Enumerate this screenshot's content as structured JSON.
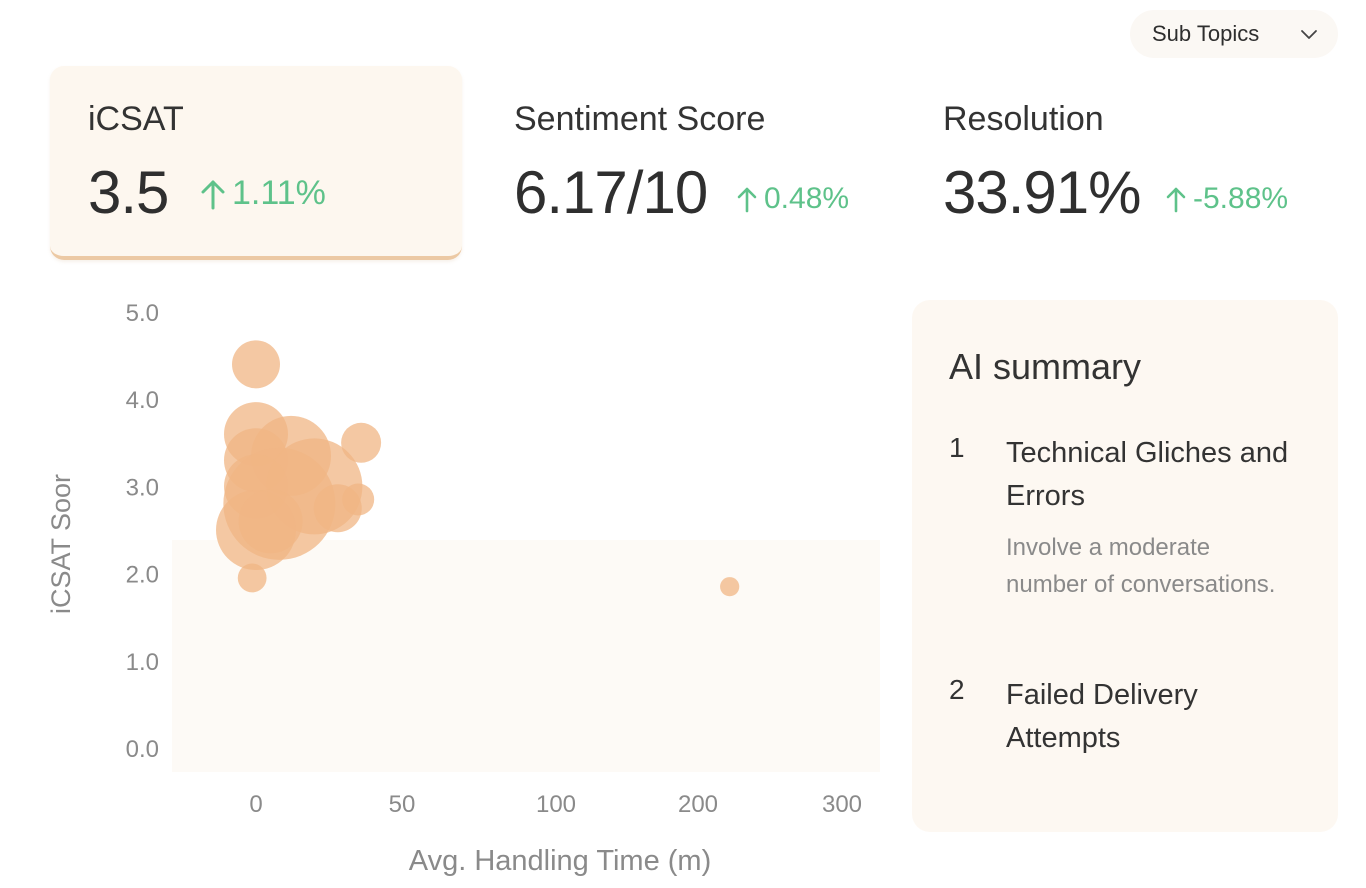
{
  "filter": {
    "label": "Sub Topics",
    "icon": "chevron-down-icon"
  },
  "kpis": [
    {
      "label": "iCSAT",
      "value": "3.5",
      "delta": "1.11%",
      "active": true
    },
    {
      "label": "Sentiment Score",
      "value": "6.17/10",
      "delta": "0.48%",
      "active": false
    },
    {
      "label": "Resolution",
      "value": "33.91%",
      "delta": "-5.88%",
      "active": false
    }
  ],
  "colors": {
    "accent": "#ecc9a4",
    "positive": "#5ec28a",
    "bubble": "#f0b584",
    "panel": "#fdf8f2"
  },
  "chart_data": {
    "type": "scatter",
    "xlabel": "Avg. Handling Time (m)",
    "ylabel": "iCSAT Soor",
    "xlim": [
      -50,
      300
    ],
    "ylim": [
      0,
      5
    ],
    "x_ticks": [
      0,
      50,
      100,
      200,
      300
    ],
    "x_tick_labels": [
      "0",
      "50",
      "100",
      "200",
      "300"
    ],
    "y_ticks": [
      0,
      1,
      2,
      3,
      4,
      5
    ],
    "y_tick_labels": [
      "0.0",
      "1.0",
      "2.0",
      "3.0",
      "4.0",
      "5.0"
    ],
    "points": [
      {
        "x": 0,
        "y": 4.4,
        "size": 3
      },
      {
        "x": 0,
        "y": 3.6,
        "size": 4
      },
      {
        "x": 12,
        "y": 3.35,
        "size": 5
      },
      {
        "x": 0,
        "y": 3.3,
        "size": 4
      },
      {
        "x": 36,
        "y": 3.5,
        "size": 2.5
      },
      {
        "x": 20,
        "y": 3.0,
        "size": 6
      },
      {
        "x": 0,
        "y": 3.0,
        "size": 4
      },
      {
        "x": 8,
        "y": 2.8,
        "size": 7
      },
      {
        "x": 28,
        "y": 2.75,
        "size": 3
      },
      {
        "x": 35,
        "y": 2.85,
        "size": 2
      },
      {
        "x": 0,
        "y": 2.5,
        "size": 5
      },
      {
        "x": 5,
        "y": 2.6,
        "size": 4
      },
      {
        "x": -2,
        "y": 1.95,
        "size": 1.8
      },
      {
        "x": 222,
        "y": 1.85,
        "size": 1.2
      }
    ]
  },
  "summary": {
    "title": "AI summary",
    "items": [
      {
        "number": "1",
        "title": "Technical Gliches and Errors",
        "description": "Involve a moderate number of conversations."
      },
      {
        "number": "2",
        "title": "Failed Delivery Attempts",
        "description": ""
      }
    ]
  }
}
